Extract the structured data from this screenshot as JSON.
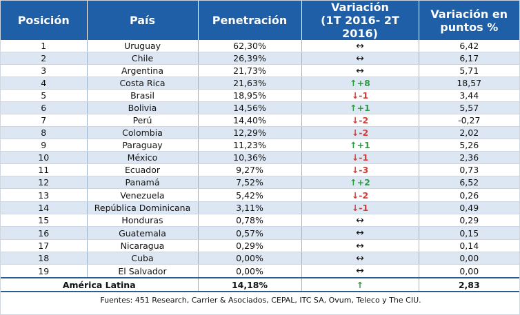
{
  "headers": {
    "position": "Posición",
    "country": "País",
    "penetration": "Penetración",
    "variation_line1": "Variación",
    "variation_line2": "(1T 2016- 2T 2016)",
    "points_line1": "Variación en",
    "points_line2": "puntos %"
  },
  "rows": [
    {
      "pos": "1",
      "country": "Uruguay",
      "pen": "62,30%",
      "dir": "same",
      "change": "",
      "pts": "6,42"
    },
    {
      "pos": "2",
      "country": "Chile",
      "pen": "26,39%",
      "dir": "same",
      "change": "",
      "pts": "6,17"
    },
    {
      "pos": "3",
      "country": "Argentina",
      "pen": "21,73%",
      "dir": "same",
      "change": "",
      "pts": "5,71"
    },
    {
      "pos": "4",
      "country": "Costa Rica",
      "pen": "21,63%",
      "dir": "up",
      "change": "+8",
      "pts": "18,57"
    },
    {
      "pos": "5",
      "country": "Brasil",
      "pen": "18,95%",
      "dir": "down",
      "change": "-1",
      "pts": "3,44"
    },
    {
      "pos": "6",
      "country": "Bolivia",
      "pen": "14,56%",
      "dir": "up",
      "change": "+1",
      "pts": "5,57"
    },
    {
      "pos": "7",
      "country": "Perú",
      "pen": "14,40%",
      "dir": "down",
      "change": "-2",
      "pts": "-0,27"
    },
    {
      "pos": "8",
      "country": "Colombia",
      "pen": "12,29%",
      "dir": "down",
      "change": "-2",
      "pts": "2,02"
    },
    {
      "pos": "9",
      "country": "Paraguay",
      "pen": "11,23%",
      "dir": "up",
      "change": "+1",
      "pts": "5,26"
    },
    {
      "pos": "10",
      "country": "México",
      "pen": "10,36%",
      "dir": "down",
      "change": "-1",
      "pts": "2,36"
    },
    {
      "pos": "11",
      "country": "Ecuador",
      "pen": "9,27%",
      "dir": "down",
      "change": "-3",
      "pts": "0,73"
    },
    {
      "pos": "12",
      "country": "Panamá",
      "pen": "7,52%",
      "dir": "up",
      "change": "+2",
      "pts": "6,52"
    },
    {
      "pos": "13",
      "country": "Venezuela",
      "pen": "5,42%",
      "dir": "down",
      "change": "-2",
      "pts": "0,26"
    },
    {
      "pos": "14",
      "country": "República Dominicana",
      "pen": "3,11%",
      "dir": "down",
      "change": "-1",
      "pts": "0,49"
    },
    {
      "pos": "15",
      "country": "Honduras",
      "pen": "0,78%",
      "dir": "same",
      "change": "",
      "pts": "0,29"
    },
    {
      "pos": "16",
      "country": "Guatemala",
      "pen": "0,57%",
      "dir": "same",
      "change": "",
      "pts": "0,15"
    },
    {
      "pos": "17",
      "country": "Nicaragua",
      "pen": "0,29%",
      "dir": "same",
      "change": "",
      "pts": "0,14"
    },
    {
      "pos": "18",
      "country": "Cuba",
      "pen": "0,00%",
      "dir": "same",
      "change": "",
      "pts": "0,00"
    },
    {
      "pos": "19",
      "country": "El Salvador",
      "pen": "0,00%",
      "dir": "same",
      "change": "",
      "pts": "0,00"
    }
  ],
  "total": {
    "label": "América Latina",
    "pen": "14,18%",
    "dir": "up",
    "pts": "2,83"
  },
  "source": "Fuentes: 451 Research,  Carrier & Asociados, CEPAL, ITC SA, Ovum, Teleco y The CIU.",
  "icons": {
    "same": "left-right-arrow-icon",
    "up": "up-arrow-icon",
    "down": "down-arrow-icon"
  },
  "colors": {
    "header": "#1f5fa8",
    "up": "#2e9a44",
    "down": "#d63a34",
    "stripe": "#dce7f3"
  }
}
